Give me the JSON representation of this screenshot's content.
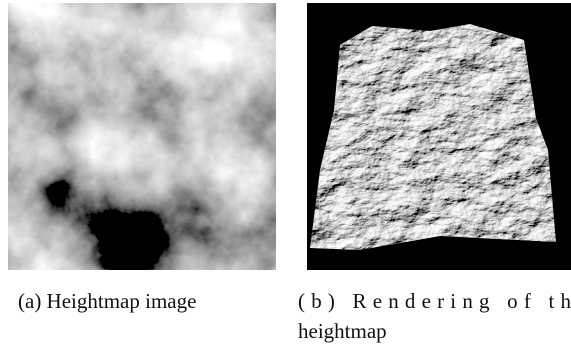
{
  "captions": {
    "a": "(a) Heightmap image",
    "b": [
      "(b) Rendering of th",
      "heightmap"
    ]
  }
}
